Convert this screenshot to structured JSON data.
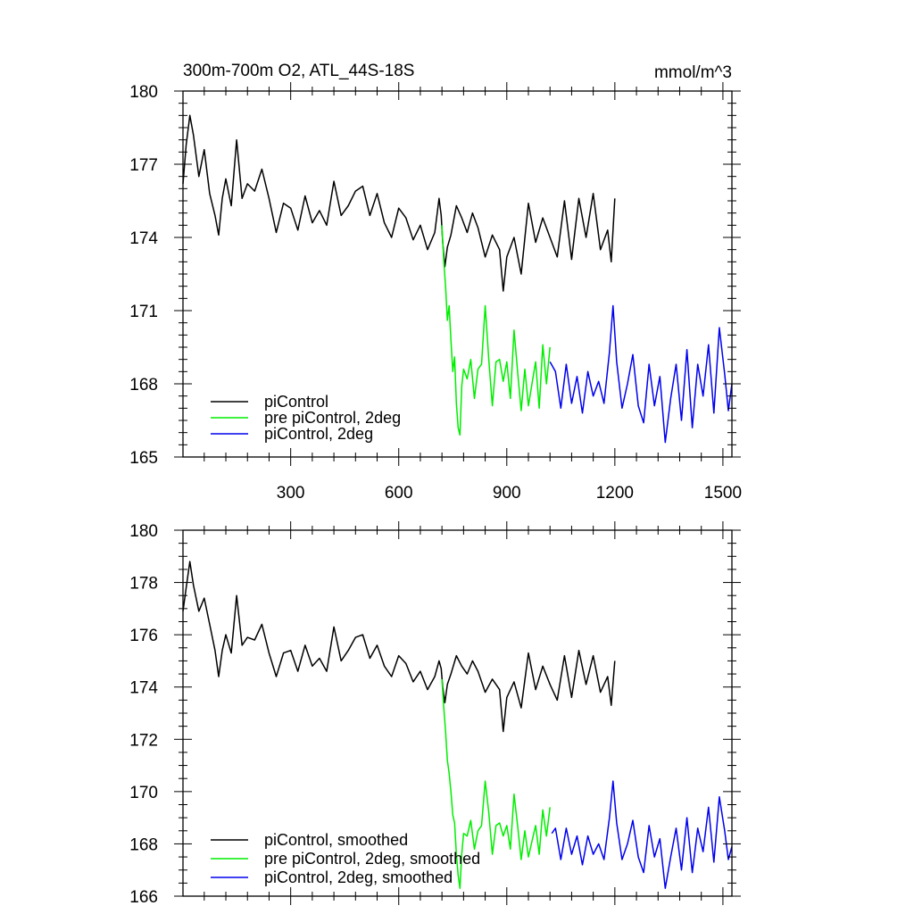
{
  "chart_data": [
    {
      "type": "line",
      "title": "300m-700m O2, ATL_44S-18S",
      "units": "mmol/m^3",
      "xlim": [
        1,
        1525
      ],
      "ylim": [
        165,
        180
      ],
      "x_ticks": [
        300,
        600,
        900,
        1200,
        1500
      ],
      "y_ticks": [
        165,
        168,
        171,
        174,
        177,
        180
      ],
      "legend_position": "bottom-left",
      "series": [
        {
          "name": "piControl",
          "color": "#000000",
          "x": [
            1,
            10,
            20,
            30,
            45,
            60,
            75,
            90,
            100,
            110,
            120,
            135,
            150,
            165,
            180,
            200,
            220,
            240,
            260,
            280,
            300,
            320,
            340,
            360,
            380,
            400,
            420,
            440,
            460,
            480,
            500,
            520,
            540,
            560,
            580,
            600,
            620,
            640,
            660,
            680,
            700,
            712,
            718,
            722,
            728,
            735,
            745,
            760,
            775,
            790,
            805,
            820,
            840,
            860,
            880,
            890,
            900,
            920,
            940,
            960,
            980,
            1000,
            1020,
            1040,
            1060,
            1080,
            1100,
            1120,
            1140,
            1160,
            1180,
            1190,
            1200
          ],
          "values": [
            176.2,
            177.8,
            179.0,
            178.2,
            176.5,
            177.6,
            175.8,
            174.9,
            174.1,
            175.6,
            176.4,
            175.3,
            178.0,
            175.6,
            176.2,
            175.9,
            176.8,
            175.6,
            174.2,
            175.4,
            175.2,
            174.3,
            175.7,
            174.6,
            175.1,
            174.5,
            176.3,
            174.9,
            175.3,
            175.9,
            176.1,
            174.9,
            175.8,
            174.6,
            174.0,
            175.2,
            174.8,
            173.9,
            174.5,
            173.5,
            174.2,
            175.6,
            174.9,
            173.8,
            172.8,
            173.6,
            174.1,
            175.3,
            174.8,
            174.2,
            175.0,
            174.4,
            173.2,
            174.1,
            173.5,
            171.8,
            173.2,
            174.0,
            172.5,
            175.4,
            173.8,
            174.8,
            174.0,
            173.2,
            175.5,
            173.1,
            175.6,
            174.0,
            175.8,
            173.5,
            174.3,
            173.0,
            175.6
          ]
        },
        {
          "name": "pre piControl, 2deg",
          "color": "#00ee00",
          "x": [
            720,
            725,
            730,
            735,
            740,
            745,
            750,
            755,
            760,
            765,
            770,
            775,
            780,
            790,
            800,
            810,
            820,
            830,
            840,
            850,
            860,
            870,
            880,
            890,
            900,
            910,
            920,
            930,
            940,
            950,
            960,
            970,
            980,
            990,
            1000,
            1010,
            1020
          ],
          "values": [
            174.5,
            173.0,
            172.0,
            170.6,
            171.2,
            169.8,
            168.5,
            169.1,
            167.2,
            166.2,
            165.9,
            167.9,
            168.6,
            168.2,
            169.0,
            167.4,
            168.6,
            168.8,
            171.2,
            169.0,
            167.1,
            168.9,
            169.0,
            168.1,
            168.9,
            167.4,
            170.2,
            168.5,
            166.9,
            168.6,
            167.1,
            168.0,
            168.9,
            167.0,
            169.6,
            168.0,
            169.5
          ]
        },
        {
          "name": "piControl, 2deg",
          "color": "#0000ee",
          "x": [
            1020,
            1035,
            1050,
            1065,
            1080,
            1095,
            1110,
            1125,
            1140,
            1155,
            1170,
            1185,
            1195,
            1205,
            1220,
            1235,
            1250,
            1265,
            1280,
            1295,
            1310,
            1325,
            1340,
            1355,
            1370,
            1385,
            1400,
            1415,
            1430,
            1445,
            1460,
            1475,
            1490,
            1505,
            1515,
            1525
          ],
          "values": [
            168.9,
            168.5,
            167.0,
            168.8,
            167.2,
            168.3,
            166.8,
            168.5,
            167.5,
            168.1,
            167.2,
            169.3,
            171.2,
            168.9,
            167.0,
            168.0,
            169.2,
            167.1,
            166.4,
            168.8,
            167.1,
            168.3,
            165.6,
            167.4,
            168.8,
            166.5,
            169.4,
            166.2,
            168.8,
            167.5,
            169.6,
            166.8,
            170.3,
            168.4,
            166.9,
            168.0
          ]
        }
      ]
    },
    {
      "type": "line",
      "title": "",
      "xlim": [
        1,
        1525
      ],
      "ylim": [
        166,
        180
      ],
      "x_ticks": [
        300,
        600,
        900,
        1200,
        1500
      ],
      "y_ticks": [
        166,
        168,
        170,
        172,
        174,
        176,
        178,
        180
      ],
      "legend_position": "bottom-left",
      "series": [
        {
          "name": "piControl, smoothed",
          "color": "#000000",
          "x": [
            1,
            10,
            20,
            30,
            45,
            60,
            75,
            90,
            100,
            110,
            120,
            135,
            150,
            165,
            180,
            200,
            220,
            240,
            260,
            280,
            300,
            320,
            340,
            360,
            380,
            400,
            420,
            440,
            460,
            480,
            500,
            520,
            540,
            560,
            580,
            600,
            620,
            640,
            660,
            680,
            700,
            712,
            718,
            722,
            728,
            735,
            745,
            760,
            775,
            790,
            805,
            820,
            840,
            860,
            880,
            890,
            900,
            920,
            940,
            960,
            980,
            1000,
            1020,
            1040,
            1060,
            1080,
            1100,
            1120,
            1140,
            1160,
            1180,
            1190,
            1200
          ],
          "values": [
            176.9,
            177.8,
            178.8,
            177.9,
            176.9,
            177.4,
            176.4,
            175.4,
            174.4,
            175.4,
            176.0,
            175.3,
            177.5,
            175.6,
            175.9,
            175.8,
            176.4,
            175.3,
            174.4,
            175.3,
            175.4,
            174.6,
            175.6,
            174.8,
            175.1,
            174.6,
            176.3,
            175.0,
            175.4,
            175.9,
            176.0,
            175.1,
            175.6,
            174.8,
            174.4,
            175.2,
            174.9,
            174.2,
            174.6,
            173.9,
            174.4,
            175.0,
            174.7,
            174.0,
            173.4,
            174.1,
            174.5,
            175.2,
            174.8,
            174.5,
            175.0,
            174.6,
            173.8,
            174.3,
            173.9,
            172.3,
            173.6,
            174.2,
            173.2,
            175.3,
            173.9,
            174.8,
            174.1,
            173.5,
            175.2,
            173.6,
            175.4,
            174.1,
            175.2,
            173.8,
            174.4,
            173.3,
            175.0
          ]
        },
        {
          "name": "pre piControl, 2deg, smoothed",
          "color": "#00ee00",
          "x": [
            720,
            725,
            730,
            735,
            740,
            745,
            750,
            755,
            760,
            765,
            770,
            775,
            780,
            790,
            800,
            810,
            820,
            830,
            840,
            850,
            860,
            870,
            880,
            890,
            900,
            910,
            920,
            930,
            940,
            950,
            960,
            970,
            980,
            990,
            1000,
            1010,
            1020
          ],
          "values": [
            174.3,
            173.2,
            172.3,
            171.2,
            170.7,
            170.0,
            169.1,
            168.8,
            167.6,
            166.8,
            166.3,
            167.6,
            168.4,
            168.3,
            168.9,
            167.8,
            168.5,
            168.7,
            170.4,
            169.2,
            167.6,
            168.7,
            168.8,
            168.3,
            168.7,
            167.8,
            169.9,
            168.7,
            167.4,
            168.5,
            167.5,
            168.1,
            168.7,
            167.6,
            169.3,
            168.3,
            169.4
          ]
        },
        {
          "name": "piControl, 2deg, smoothed",
          "color": "#0000ee",
          "x": [
            1025,
            1035,
            1050,
            1065,
            1080,
            1095,
            1110,
            1125,
            1140,
            1155,
            1170,
            1185,
            1195,
            1205,
            1220,
            1235,
            1250,
            1265,
            1280,
            1295,
            1310,
            1325,
            1340,
            1355,
            1370,
            1385,
            1400,
            1415,
            1430,
            1445,
            1460,
            1475,
            1490,
            1505,
            1515,
            1525
          ],
          "values": [
            168.4,
            168.6,
            167.4,
            168.6,
            167.6,
            168.3,
            167.2,
            168.3,
            167.6,
            168.0,
            167.4,
            169.0,
            170.4,
            168.8,
            167.4,
            168.0,
            168.9,
            167.5,
            166.9,
            168.7,
            167.5,
            168.2,
            166.3,
            167.5,
            168.6,
            167.0,
            169.0,
            166.9,
            168.6,
            167.7,
            169.4,
            167.3,
            169.8,
            168.5,
            167.4,
            167.9
          ]
        }
      ]
    }
  ]
}
